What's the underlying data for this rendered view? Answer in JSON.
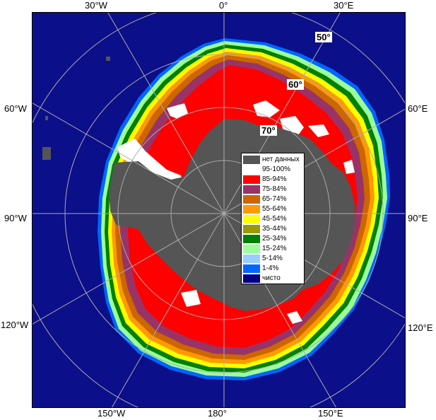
{
  "map": {
    "colors": {
      "ocean": "#0c0f8a",
      "no_data": "#555555",
      "c95_100": "#ffffff",
      "c85_94": "#ff0000",
      "c75_84": "#993366",
      "c65_74": "#cc6600",
      "c55_64": "#ff9900",
      "c45_54": "#ffff00",
      "c35_44": "#999900",
      "c25_34": "#008000",
      "c15_24": "#99ff99",
      "c5_14": "#99ccff",
      "c1_4": "#0066ff",
      "grid": "#aaaaaa"
    },
    "longitude_labels": {
      "w30": "30°W",
      "zero": "0°",
      "e30": "30°E",
      "w60": "60°W",
      "e60": "60°E",
      "w90": "90°W",
      "e90": "90°E",
      "w120": "120°W",
      "e120": "120°E",
      "w150": "150°W",
      "d180": "180°",
      "e150": "150°E"
    },
    "latitude_labels": {
      "l50": "50°",
      "l60": "60°",
      "l70": "70°"
    }
  },
  "legend": {
    "items": [
      {
        "label": "нет данных",
        "color": "#555555"
      },
      {
        "label": "95-100%",
        "color": "#ffffff"
      },
      {
        "label": "85-94%",
        "color": "#ff0000"
      },
      {
        "label": "75-84%",
        "color": "#993366"
      },
      {
        "label": "65-74%",
        "color": "#cc6600"
      },
      {
        "label": "55-64%",
        "color": "#ff9900"
      },
      {
        "label": "45-54%",
        "color": "#ffff00"
      },
      {
        "label": "35-44%",
        "color": "#999900"
      },
      {
        "label": "25-34%",
        "color": "#008000"
      },
      {
        "label": "15-24%",
        "color": "#99ff99"
      },
      {
        "label": "5-14%",
        "color": "#99ccff"
      },
      {
        "label": "1-4%",
        "color": "#0066ff"
      },
      {
        "label": "чисто",
        "color": "#000080"
      }
    ]
  }
}
